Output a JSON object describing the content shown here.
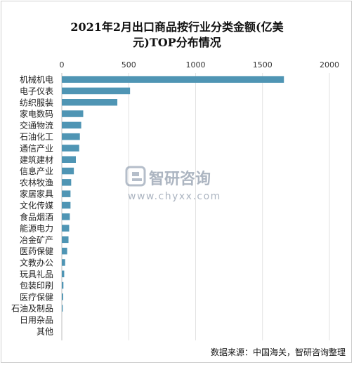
{
  "chart_data": {
    "type": "bar",
    "orientation": "horizontal",
    "title_line1": "2021年2月出口商品按行业分类金额(亿美",
    "title_line2": "元)TOP分布情况",
    "xlim": [
      0,
      2000
    ],
    "xticks": [
      "0",
      "500",
      "1000",
      "1500",
      "2000"
    ],
    "grid": true,
    "bar_color": "#4f95b4",
    "categories": [
      "机械机电",
      "电子仪表",
      "纺织服装",
      "家电数码",
      "交通物流",
      "石油化工",
      "通信产业",
      "建筑建材",
      "信息产业",
      "农林牧渔",
      "家居家具",
      "文化传媒",
      "食品烟酒",
      "能源电力",
      "冶金矿产",
      "医药保健",
      "文教办公",
      "玩具礼品",
      "包装印刷",
      "医疗保健",
      "石油及制品",
      "日用杂品",
      "其他"
    ],
    "values": [
      1660,
      510,
      415,
      160,
      145,
      135,
      130,
      105,
      90,
      70,
      65,
      65,
      60,
      55,
      50,
      40,
      25,
      18,
      12,
      10,
      7,
      0,
      0
    ]
  },
  "watermark": {
    "brand": "智研咨询",
    "url": "www.chyxx.com"
  },
  "source": "数据来源：中国海关，智研咨询整理"
}
